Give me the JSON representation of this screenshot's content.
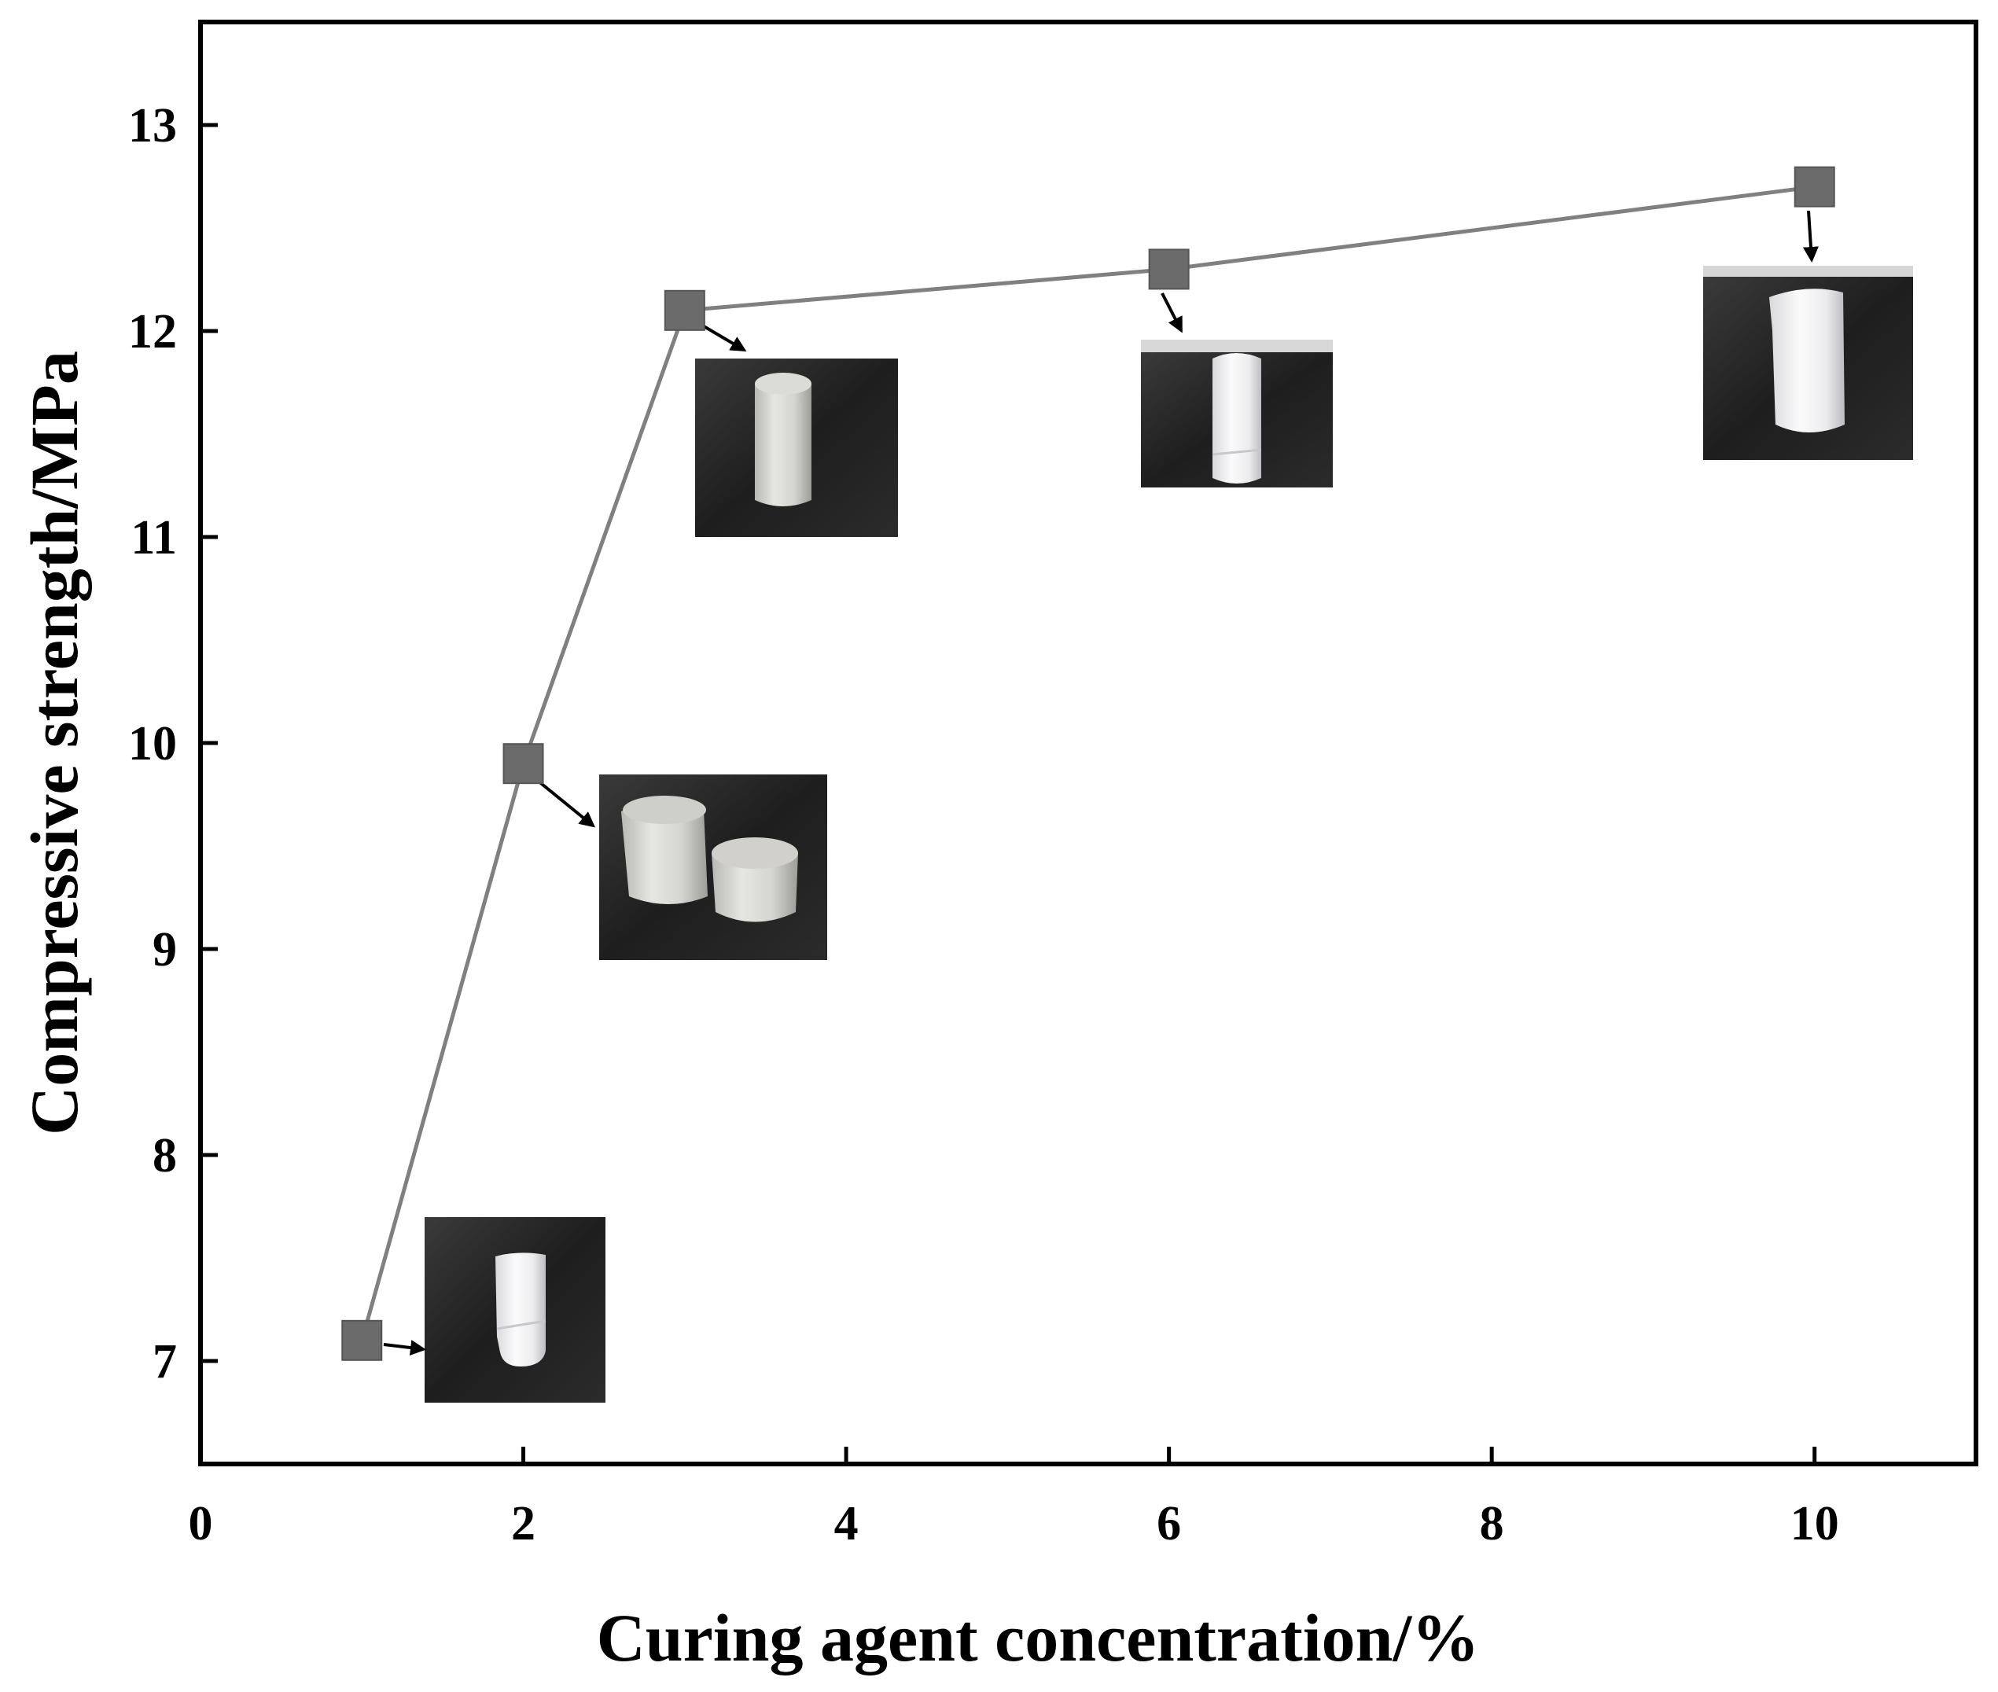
{
  "chart_data": {
    "type": "line",
    "xlabel": "Curing agent concentration/%",
    "ylabel": "Compressive strength/MPa",
    "xlim": [
      0,
      11
    ],
    "ylim": [
      6.5,
      13.5
    ],
    "xticks": [
      0,
      2,
      4,
      6,
      8,
      10
    ],
    "yticks": [
      7,
      8,
      9,
      10,
      11,
      12,
      13
    ],
    "series": [
      {
        "name": "Compressive strength",
        "marker": "square",
        "x": [
          1,
          2,
          3,
          6,
          10
        ],
        "y": [
          7.1,
          9.9,
          12.1,
          12.3,
          12.7
        ]
      }
    ],
    "line_color": "#808080",
    "marker_color": "#6b6b6b",
    "insets": [
      {
        "x": 1,
        "description_icon": "specimen-photo-1pct"
      },
      {
        "x": 2,
        "description_icon": "specimen-photo-2pct"
      },
      {
        "x": 3,
        "description_icon": "specimen-photo-3pct"
      },
      {
        "x": 6,
        "description_icon": "specimen-photo-6pct"
      },
      {
        "x": 10,
        "description_icon": "specimen-photo-10pct"
      }
    ]
  }
}
